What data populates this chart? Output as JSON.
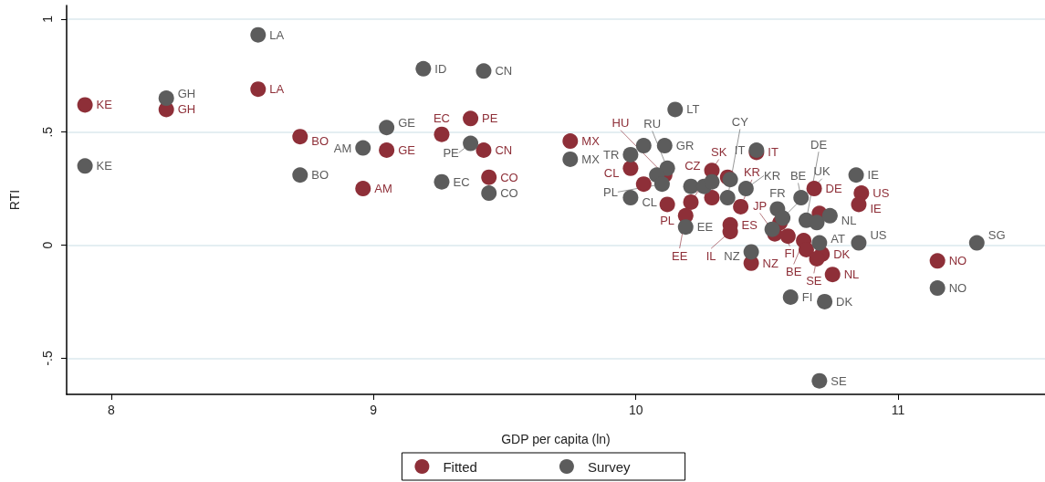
{
  "chart_data": {
    "type": "scatter",
    "xlabel": "GDP per capita (ln)",
    "ylabel": "RTI",
    "xlim": [
      7.83,
      11.56
    ],
    "ylim": [
      -0.66,
      1.06
    ],
    "xticks": [
      8,
      9,
      10,
      11
    ],
    "yticks": [
      {
        "value": -0.5,
        "label": "-.5"
      },
      0,
      {
        "value": 0.5,
        "label": ".5"
      },
      1
    ],
    "grid": "y",
    "legend": "bottom",
    "marker": "circle",
    "series": [
      {
        "name": "Fitted",
        "color": "#8e2f38",
        "x": [
          7.9,
          8.21,
          8.56,
          8.72,
          8.96,
          9.05,
          9.26,
          9.37,
          9.42,
          9.44,
          9.75,
          9.98,
          10.03,
          10.11,
          10.12,
          10.21,
          10.19,
          10.29,
          10.35,
          10.29,
          10.4,
          10.36,
          10.36,
          10.46,
          10.68,
          10.86,
          10.85,
          10.7,
          10.44,
          10.75,
          11.15,
          10.55,
          10.53,
          10.58,
          10.64,
          10.65,
          10.71,
          10.69
        ],
        "values": [
          0.62,
          0.6,
          0.69,
          0.48,
          0.25,
          0.42,
          0.49,
          0.56,
          0.42,
          0.3,
          0.46,
          0.34,
          0.27,
          0.31,
          0.18,
          0.19,
          0.13,
          0.33,
          0.3,
          0.21,
          0.17,
          0.09,
          0.06,
          0.41,
          0.25,
          0.23,
          0.18,
          0.14,
          -0.08,
          -0.13,
          -0.07,
          0.1,
          0.05,
          0.04,
          0.02,
          -0.02,
          -0.04,
          -0.06
        ],
        "value_labels": [
          "KE",
          "GH",
          "LA",
          "BO",
          "AM",
          "GE",
          "EC",
          "PE",
          "CN",
          "CO",
          "MX",
          "CL",
          null,
          "HU",
          "PL",
          "SK",
          "EE",
          "CZ",
          null,
          null,
          "KR",
          "ES",
          "IL",
          "IT",
          "DE",
          "US",
          "IE",
          null,
          "NZ",
          "NL",
          "NO",
          "FI",
          "JP",
          null,
          "BE",
          null,
          "DK",
          "SE"
        ]
      },
      {
        "name": "Survey",
        "color": "#5c5c5c",
        "x": [
          7.9,
          8.21,
          8.56,
          8.72,
          8.96,
          9.05,
          9.19,
          9.26,
          9.37,
          9.42,
          9.44,
          9.75,
          9.98,
          9.98,
          10.03,
          10.11,
          10.12,
          10.08,
          10.1,
          10.21,
          10.26,
          10.29,
          10.36,
          10.35,
          10.42,
          10.19,
          10.46,
          10.15,
          10.84,
          10.63,
          10.54,
          10.56,
          10.52,
          10.65,
          10.69,
          10.74,
          10.7,
          10.85,
          10.44,
          10.59,
          10.72,
          10.7,
          11.15,
          11.3
        ],
        "values": [
          0.35,
          0.65,
          0.93,
          0.31,
          0.43,
          0.52,
          0.78,
          0.28,
          0.45,
          0.77,
          0.23,
          0.38,
          0.4,
          0.21,
          0.44,
          0.44,
          0.34,
          0.31,
          0.27,
          0.26,
          0.26,
          0.28,
          0.29,
          0.21,
          0.25,
          0.08,
          0.42,
          0.6,
          0.31,
          0.21,
          0.16,
          0.12,
          0.07,
          0.11,
          0.1,
          0.13,
          0.01,
          0.01,
          -0.03,
          -0.23,
          -0.25,
          -0.6,
          -0.19,
          0.01
        ],
        "value_labels": [
          "KE",
          "GH",
          "LA",
          "BO",
          "AM",
          "GE",
          "ID",
          "EC",
          "PE",
          "CN",
          "CO",
          "MX",
          "TR",
          "CL",
          null,
          "GR",
          "RU",
          null,
          "PL",
          null,
          null,
          null,
          null,
          "CY",
          "KR",
          "EE",
          "IT",
          "LT",
          "IE",
          "BE",
          "FR",
          "UK",
          null,
          "DE",
          null,
          "NL",
          "AT",
          "US",
          "NZ",
          "FI",
          "DK",
          "SE",
          "NO",
          "SG"
        ]
      }
    ]
  }
}
